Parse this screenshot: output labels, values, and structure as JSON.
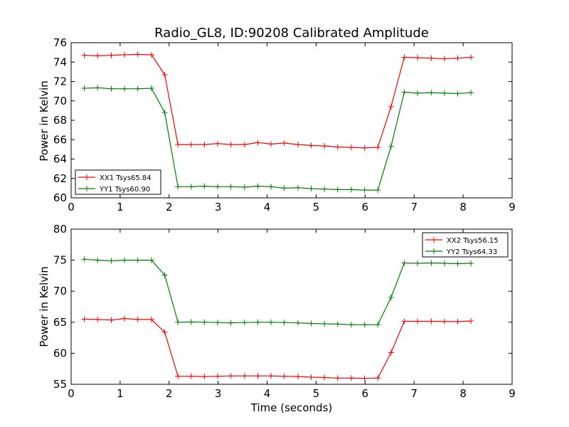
{
  "figure_title": "Radio_GL8, ID:90208 Calibrated Amplitude",
  "chart_data": [
    {
      "type": "line",
      "title": "Radio_GL8, ID:90208 Calibrated Amplitude",
      "xlabel": "",
      "ylabel": "Power in Kelvin",
      "xlim": [
        0,
        9
      ],
      "ylim": [
        60,
        76
      ],
      "xticks": [
        "0",
        "1",
        "2",
        "3",
        "4",
        "5",
        "6",
        "7",
        "8",
        "9"
      ],
      "yticks": [
        "60",
        "62",
        "64",
        "66",
        "68",
        "70",
        "72",
        "74",
        "76"
      ],
      "legend_position": "lower-left",
      "grid": false,
      "x": [
        0.27,
        0.54,
        0.82,
        1.09,
        1.36,
        1.64,
        1.91,
        2.18,
        2.45,
        2.72,
        2.99,
        3.26,
        3.54,
        3.81,
        4.08,
        4.35,
        4.63,
        4.9,
        5.17,
        5.44,
        5.72,
        5.99,
        6.26,
        6.53,
        6.8,
        7.07,
        7.35,
        7.62,
        7.89,
        8.16
      ],
      "series": [
        {
          "name": "XX1 Tsys65.84",
          "color": "#ff0000",
          "values": [
            74.7,
            74.65,
            74.7,
            74.75,
            74.8,
            74.75,
            72.7,
            65.5,
            65.5,
            65.5,
            65.6,
            65.5,
            65.5,
            65.7,
            65.55,
            65.65,
            65.5,
            65.4,
            65.35,
            65.25,
            65.2,
            65.15,
            65.2,
            69.4,
            74.5,
            74.45,
            74.4,
            74.35,
            74.4,
            74.5
          ]
        },
        {
          "name": "YY1 Tsys60.90",
          "color": "#008000",
          "values": [
            71.3,
            71.35,
            71.25,
            71.25,
            71.25,
            71.3,
            68.8,
            61.15,
            61.15,
            61.2,
            61.15,
            61.15,
            61.1,
            61.2,
            61.15,
            61.0,
            61.05,
            60.95,
            60.9,
            60.85,
            60.85,
            60.8,
            60.8,
            65.3,
            70.9,
            70.8,
            70.85,
            70.8,
            70.75,
            70.85
          ]
        }
      ]
    },
    {
      "type": "line",
      "title": "",
      "xlabel": "Time (seconds)",
      "ylabel": "Power in Kelvin",
      "xlim": [
        0,
        9
      ],
      "ylim": [
        55,
        80
      ],
      "xticks": [
        "0",
        "1",
        "2",
        "3",
        "4",
        "5",
        "6",
        "7",
        "8",
        "9"
      ],
      "yticks": [
        "55",
        "60",
        "65",
        "70",
        "75",
        "80"
      ],
      "legend_position": "upper-right",
      "grid": false,
      "x": [
        0.27,
        0.54,
        0.82,
        1.09,
        1.36,
        1.64,
        1.91,
        2.18,
        2.45,
        2.72,
        2.99,
        3.26,
        3.54,
        3.81,
        4.08,
        4.35,
        4.63,
        4.9,
        5.17,
        5.44,
        5.72,
        5.99,
        6.26,
        6.53,
        6.8,
        7.07,
        7.35,
        7.62,
        7.89,
        8.16
      ],
      "series": [
        {
          "name": "XX2 Tsys56.15",
          "color": "#ff0000",
          "values": [
            65.5,
            65.45,
            65.35,
            65.6,
            65.45,
            65.45,
            63.4,
            56.3,
            56.3,
            56.25,
            56.3,
            56.35,
            56.35,
            56.35,
            56.35,
            56.3,
            56.25,
            56.15,
            56.1,
            56.0,
            56.0,
            55.95,
            56.0,
            60.1,
            65.15,
            65.15,
            65.15,
            65.1,
            65.1,
            65.2
          ]
        },
        {
          "name": "YY2 Tsys64.33",
          "color": "#008000",
          "values": [
            75.15,
            75.0,
            74.9,
            75.0,
            75.0,
            75.0,
            72.6,
            65.0,
            65.05,
            65.0,
            64.95,
            64.9,
            64.95,
            65.0,
            65.0,
            64.95,
            64.9,
            64.8,
            64.75,
            64.7,
            64.6,
            64.6,
            64.6,
            69.0,
            74.55,
            74.5,
            74.55,
            74.5,
            74.45,
            74.5
          ]
        }
      ]
    }
  ]
}
